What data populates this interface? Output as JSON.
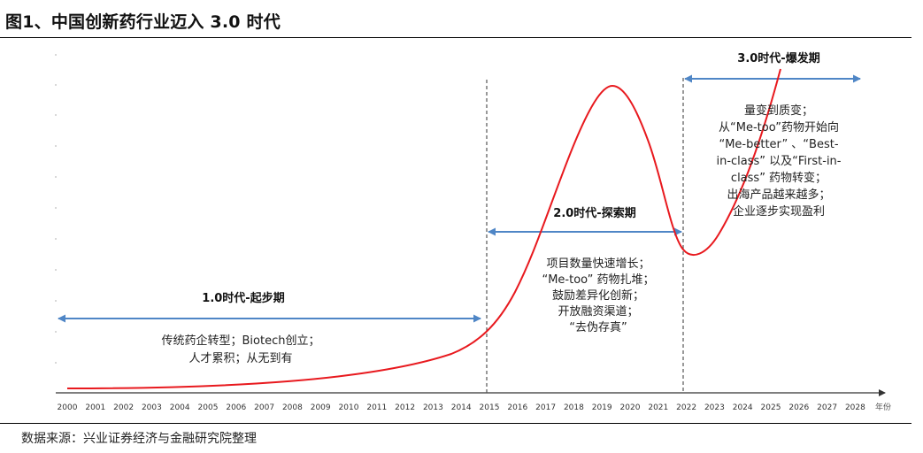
{
  "header": {
    "title": "图1、中国创新药行业迈入 3.0 时代"
  },
  "footer": {
    "source": "数据来源：兴业证券经济与金融研究院整理"
  },
  "colors": {
    "curve": "#e8191e",
    "span_arrow": "#4f86c6",
    "axis": "#333333",
    "divider": "#555555"
  },
  "axis": {
    "years": [
      "2000",
      "2001",
      "2002",
      "2003",
      "2004",
      "2005",
      "2006",
      "2007",
      "2008",
      "2009",
      "2010",
      "2011",
      "2012",
      "2013",
      "2014",
      "2015",
      "2016",
      "2017",
      "2018",
      "2019",
      "2020",
      "2021",
      "2022",
      "2023",
      "2024",
      "2025",
      "2026",
      "2027",
      "2028"
    ],
    "unit_label": "年份"
  },
  "dividers": [
    "2015",
    "2022"
  ],
  "eras": [
    {
      "title": "1.0时代-起步期",
      "span": [
        "2000",
        "2015"
      ],
      "lines": [
        "传统药企转型；Biotech创立；",
        "人才累积；从无到有"
      ]
    },
    {
      "title": "2.0时代-探索期",
      "span": [
        "2015",
        "2022"
      ],
      "lines": [
        "项目数量快速增长；",
        "“Me-too” 药物扎堆；",
        "鼓励差异化创新；",
        "开放融资渠道；",
        "“去伪存真”"
      ]
    },
    {
      "title": "3.0时代-爆发期",
      "span": [
        "2022",
        "2028"
      ],
      "lines": [
        "量变到质变；",
        "从“Me-too”药物开始向",
        "“Me-better” 、“Best-",
        "in-class” 以及“First-in-",
        "class” 药物转变；",
        "出海产品越来越多；",
        "企业逐步实现盈利"
      ]
    }
  ]
}
